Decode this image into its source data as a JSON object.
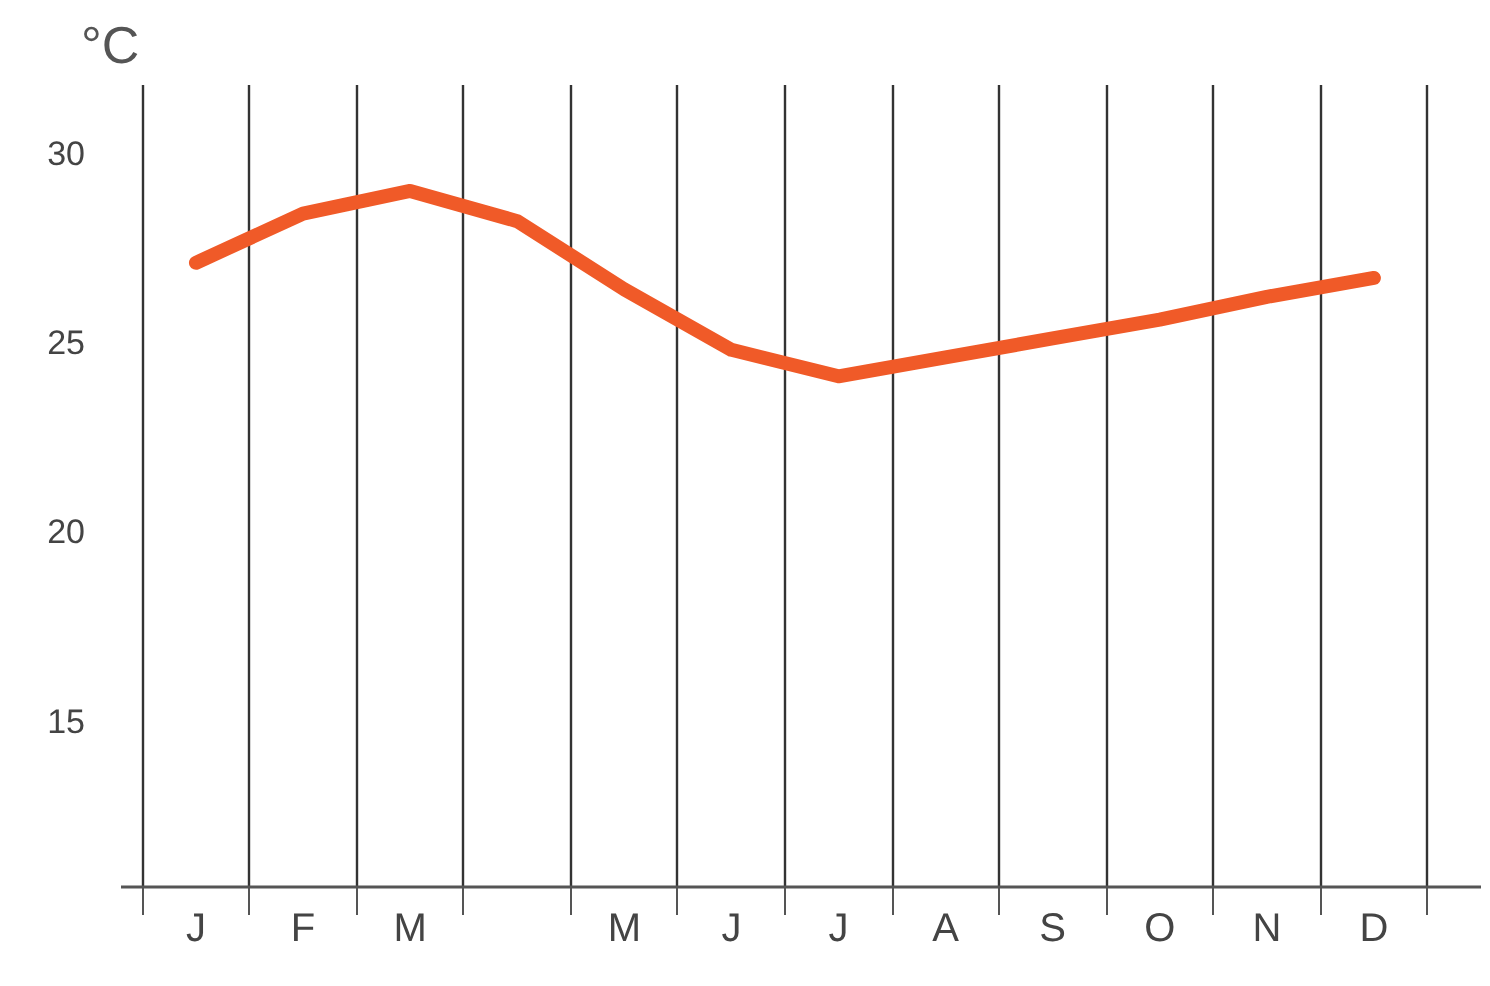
{
  "chart_data": {
    "type": "line",
    "ylabel": "°C",
    "categories": [
      "J",
      "F",
      "M",
      null,
      "M",
      "J",
      "J",
      "A",
      "S",
      "O",
      "N",
      "D"
    ],
    "series": [
      {
        "color": "#f05a28",
        "values": [
          27.1,
          28.4,
          29.0,
          28.2,
          26.4,
          24.8,
          24.1,
          24.6,
          25.1,
          25.6,
          26.2,
          26.7
        ]
      }
    ],
    "ylim": [
      10.6,
      31.8
    ],
    "yticks": [
      15,
      20,
      25,
      30
    ],
    "grid": "x",
    "line_style": "solid"
  }
}
